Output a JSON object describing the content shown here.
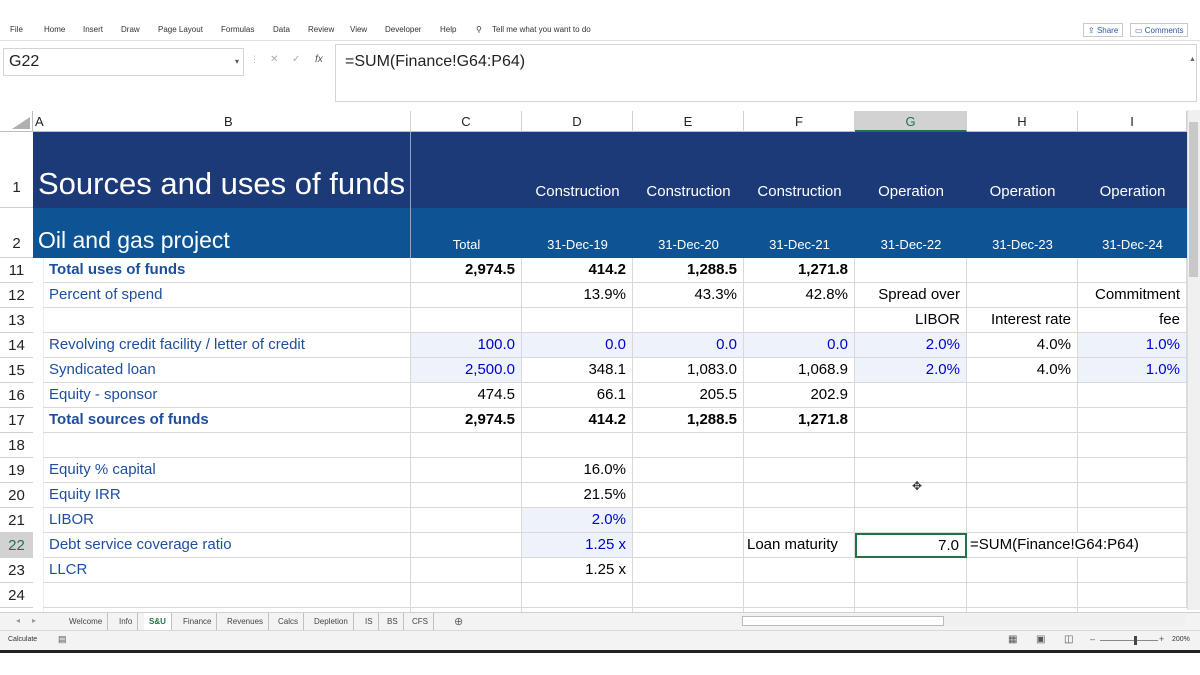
{
  "menu": {
    "file": "File",
    "home": "Home",
    "insert": "Insert",
    "draw": "Draw",
    "page_layout": "Page Layout",
    "formulas": "Formulas",
    "data": "Data",
    "review": "Review",
    "view": "View",
    "developer": "Developer",
    "help": "Help",
    "tell_me": "Tell me what you want to do",
    "share": "Share",
    "comments": "Comments"
  },
  "formula_bar": {
    "name_box": "G22",
    "formula": "=SUM(Finance!G64:P64)",
    "fx": "fx"
  },
  "columns": [
    "A",
    "B",
    "C",
    "D",
    "E",
    "F",
    "G",
    "H",
    "I"
  ],
  "selected_column": "G",
  "header": {
    "title": "Sources and uses of funds",
    "subtitle": "Oil and gas project",
    "phases": [
      "Construction",
      "Construction",
      "Construction",
      "Operation",
      "Operation",
      "Operation"
    ],
    "total": "Total",
    "dates": [
      "31-Dec-19",
      "31-Dec-20",
      "31-Dec-21",
      "31-Dec-22",
      "31-Dec-23",
      "31-Dec-24"
    ]
  },
  "row_numbers": [
    "1",
    "2",
    "11",
    "12",
    "13",
    "14",
    "15",
    "16",
    "17",
    "18",
    "19",
    "20",
    "21",
    "22",
    "23",
    "24"
  ],
  "rows": {
    "r11": {
      "label": "Total uses of funds",
      "c": "2,974.5",
      "d": "414.2",
      "e": "1,288.5",
      "f": "1,271.8"
    },
    "r12": {
      "label": "Percent of spend",
      "d": "13.9%",
      "e": "43.3%",
      "f": "42.8%",
      "g": "Spread over",
      "i": "Commitment"
    },
    "r13": {
      "g": "LIBOR",
      "h": "Interest rate",
      "i": "fee"
    },
    "r14": {
      "label": "Revolving credit facility / letter of credit",
      "c": "100.0",
      "d": "0.0",
      "e": "0.0",
      "f": "0.0",
      "g": "2.0%",
      "h": "4.0%",
      "i": "1.0%"
    },
    "r15": {
      "label": "Syndicated loan",
      "c": "2,500.0",
      "d": "348.1",
      "e": "1,083.0",
      "f": "1,068.9",
      "g": "2.0%",
      "h": "4.0%",
      "i": "1.0%"
    },
    "r16": {
      "label": "Equity - sponsor",
      "c": "474.5",
      "d": "66.1",
      "e": "205.5",
      "f": "202.9"
    },
    "r17": {
      "label": "Total sources of funds",
      "c": "2,974.5",
      "d": "414.2",
      "e": "1,288.5",
      "f": "1,271.8"
    },
    "r19": {
      "label": "Equity % capital",
      "d": "16.0%"
    },
    "r20": {
      "label": "Equity IRR",
      "d": "21.5%"
    },
    "r21": {
      "label": "LIBOR",
      "d": "2.0%"
    },
    "r22": {
      "label": "Debt service coverage ratio",
      "d": "1.25 x",
      "f": "Loan maturity",
      "g": "7.0",
      "h": "=SUM(Finance!G64:P64)"
    },
    "r23": {
      "label": "LLCR",
      "d": "1.25 x"
    }
  },
  "tabs": [
    "Welcome",
    "Info",
    "S&U",
    "Finance",
    "Revenues",
    "Calcs",
    "Depletion",
    "IS",
    "BS",
    "CFS"
  ],
  "active_tab": "S&U",
  "status": {
    "mode": "Calculate",
    "zoom": "200%"
  }
}
